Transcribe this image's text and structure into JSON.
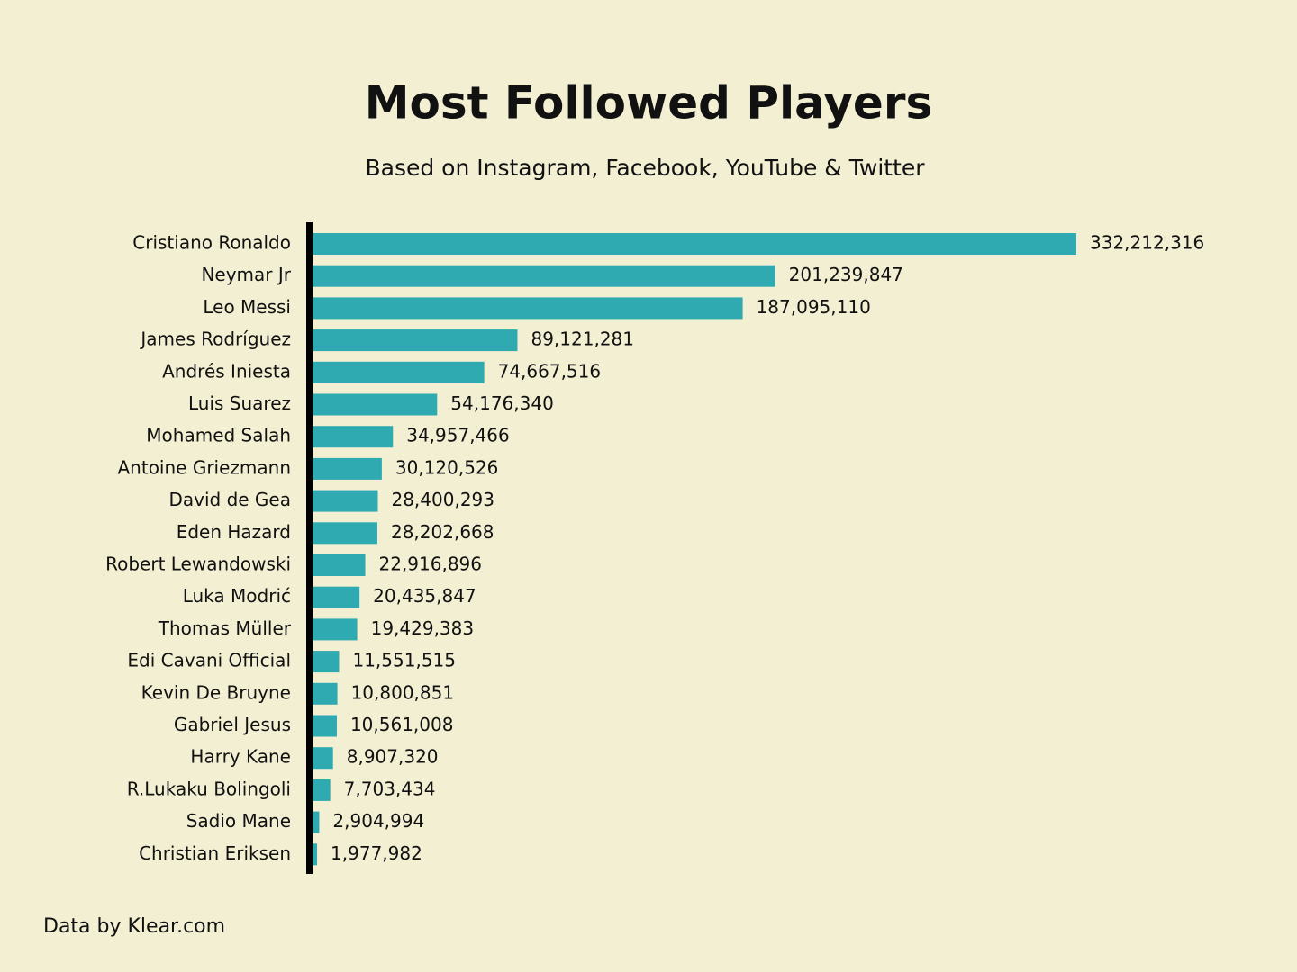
{
  "chart_data": {
    "type": "bar",
    "orientation": "horizontal",
    "title": "Most Followed Players",
    "subtitle": "Based on Instagram, Facebook, YouTube & Twitter",
    "source": "Data by Klear.com",
    "color": "#2eaab0",
    "categories": [
      "Cristiano Ronaldo",
      "Neymar Jr",
      "Leo Messi",
      "James Rodríguez",
      "Andrés Iniesta",
      "Luis Suarez",
      "Mohamed Salah",
      "Antoine Griezmann",
      "David de Gea",
      "Eden Hazard",
      "Robert Lewandowski",
      "Luka Modrić",
      "Thomas Müller",
      "Edi Cavani Official",
      "Kevin De Bruyne",
      "Gabriel Jesus",
      "Harry Kane",
      "R.Lukaku Bolingoli",
      "Sadio Mane",
      "Christian Eriksen"
    ],
    "values": [
      332212316,
      201239847,
      187095110,
      89121281,
      74667516,
      54176340,
      34957466,
      30120526,
      28400293,
      28202668,
      22916896,
      20435847,
      19429383,
      11551515,
      10800851,
      10561008,
      8907320,
      7703434,
      2904994,
      1977982
    ],
    "value_labels": [
      "332,212,316",
      "201,239,847",
      "187,095,110",
      "89,121,281",
      "74,667,516",
      "54,176,340",
      "34,957,466",
      "30,120,526",
      "28,400,293",
      "28,202,668",
      "22,916,896",
      "20,435,847",
      "19,429,383",
      "11,551,515",
      "10,800,851",
      "10,561,008",
      "8,907,320",
      "7,703,434",
      "2,904,994",
      "1,977,982"
    ]
  }
}
